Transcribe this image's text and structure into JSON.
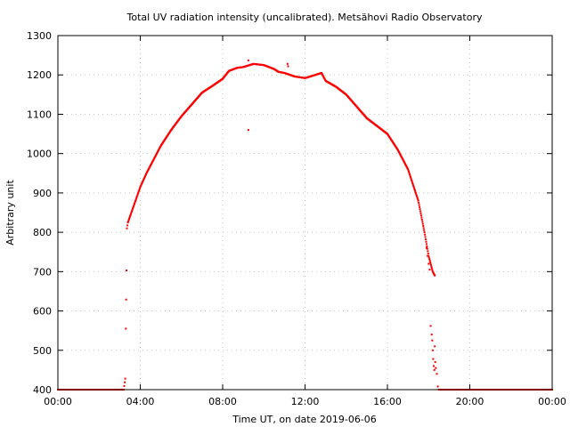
{
  "chart_data": {
    "type": "scatter",
    "title": "Total UV radiation intensity (uncalibrated). Metsähovi Radio Observatory",
    "xlabel": "Time UT, on date 2019-06-06",
    "ylabel": "Arbitrary unit",
    "xlim": [
      0,
      24
    ],
    "ylim": [
      400,
      1300
    ],
    "x_ticks": [
      0,
      4,
      8,
      12,
      16,
      20,
      24
    ],
    "x_tick_labels": [
      "00:00",
      "04:00",
      "08:00",
      "12:00",
      "16:00",
      "20:00",
      "00:00"
    ],
    "y_ticks": [
      400,
      500,
      600,
      700,
      800,
      900,
      1000,
      1100,
      1200,
      1300
    ],
    "y_tick_labels": [
      "400",
      "500",
      "600",
      "700",
      "800",
      "900",
      "1000",
      "1100",
      "1200",
      "1300"
    ],
    "grid": true,
    "marker_color": "#ff0000",
    "series": [
      {
        "curve": [
          [
            0.0,
            400
          ],
          [
            3.2,
            400
          ],
          [
            3.27,
            428
          ],
          [
            3.3,
            555
          ],
          [
            3.33,
            703
          ],
          [
            3.35,
            810
          ],
          [
            3.4,
            825
          ],
          [
            3.5,
            840
          ],
          [
            3.7,
            870
          ],
          [
            4.0,
            915
          ],
          [
            4.3,
            950
          ],
          [
            4.7,
            990
          ],
          [
            5.0,
            1020
          ],
          [
            5.5,
            1060
          ],
          [
            6.0,
            1095
          ],
          [
            6.5,
            1125
          ],
          [
            7.0,
            1155
          ],
          [
            7.5,
            1172
          ],
          [
            8.0,
            1190
          ],
          [
            8.3,
            1210
          ],
          [
            8.7,
            1218
          ],
          [
            9.0,
            1220
          ],
          [
            9.5,
            1228
          ],
          [
            10.0,
            1225
          ],
          [
            10.5,
            1215
          ],
          [
            10.7,
            1208
          ],
          [
            11.0,
            1205
          ],
          [
            11.5,
            1196
          ],
          [
            12.0,
            1192
          ],
          [
            12.5,
            1200
          ],
          [
            12.8,
            1205
          ],
          [
            13.0,
            1185
          ],
          [
            13.5,
            1170
          ],
          [
            14.0,
            1150
          ],
          [
            14.5,
            1120
          ],
          [
            15.0,
            1090
          ],
          [
            15.5,
            1070
          ],
          [
            16.0,
            1050
          ],
          [
            16.5,
            1010
          ],
          [
            17.0,
            960
          ],
          [
            17.5,
            880
          ],
          [
            17.8,
            800
          ],
          [
            18.0,
            740
          ],
          [
            18.2,
            700
          ],
          [
            18.3,
            690
          ]
        ],
        "scatter": [
          [
            9.25,
            1237
          ],
          [
            9.25,
            1060
          ],
          [
            11.15,
            1228
          ],
          [
            11.18,
            1222
          ],
          [
            17.9,
            760
          ],
          [
            17.95,
            740
          ],
          [
            18.0,
            720
          ],
          [
            18.05,
            705
          ],
          [
            18.1,
            562
          ],
          [
            18.15,
            540
          ],
          [
            18.18,
            525
          ],
          [
            18.2,
            500
          ],
          [
            18.22,
            478
          ],
          [
            18.25,
            460
          ],
          [
            18.28,
            450
          ],
          [
            18.3,
            510
          ],
          [
            18.32,
            470
          ],
          [
            18.35,
            455
          ],
          [
            18.4,
            440
          ],
          [
            18.45,
            408
          ]
        ],
        "tail": [
          [
            18.5,
            400
          ],
          [
            24.0,
            400
          ]
        ]
      }
    ]
  }
}
